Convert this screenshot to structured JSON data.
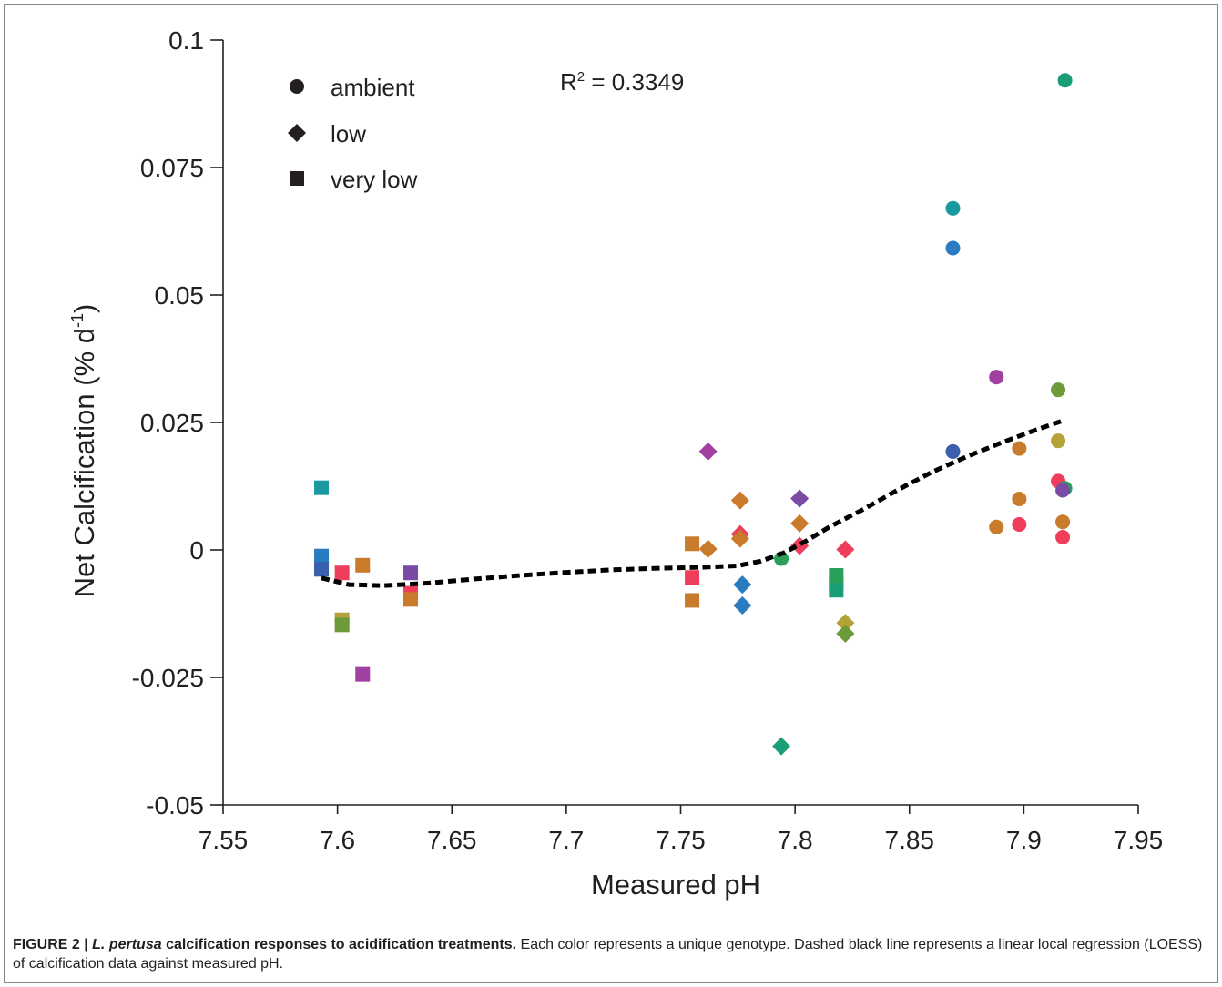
{
  "chart_data": {
    "type": "scatter",
    "xlabel": "Measured pH",
    "ylabel_main": "Net Calcification (% d",
    "ylabel_sup": "-1",
    "ylabel_close": ")",
    "xlim": [
      7.55,
      7.95
    ],
    "ylim": [
      -0.05,
      0.1
    ],
    "x_ticks": [
      "7.55",
      "7.6",
      "7.65",
      "7.7",
      "7.75",
      "7.8",
      "7.85",
      "7.9",
      "7.95"
    ],
    "x_tick_values": [
      7.55,
      7.6,
      7.65,
      7.7,
      7.75,
      7.8,
      7.85,
      7.9,
      7.95
    ],
    "y_ticks": [
      "-0.05",
      "-0.025",
      "0",
      "0.025",
      "0.05",
      "0.075",
      "0.1"
    ],
    "y_tick_values": [
      -0.05,
      -0.025,
      0,
      0.025,
      0.05,
      0.075,
      0.1
    ],
    "grid": false,
    "legend_position": "top-left",
    "legend": [
      {
        "label": "ambient",
        "shape": "circle"
      },
      {
        "label": "low",
        "shape": "diamond"
      },
      {
        "label": "very low",
        "shape": "square"
      }
    ],
    "annotation": {
      "main": "R",
      "sup": "2",
      "rest": " = 0.3349"
    },
    "treatments": [
      {
        "name": "ambient",
        "shape": "circle",
        "points": [
          {
            "x": 7.918,
            "y": 0.0921,
            "color": "#1a9e77"
          },
          {
            "x": 7.869,
            "y": 0.067,
            "color": "#1a9aa0"
          },
          {
            "x": 7.869,
            "y": 0.0592,
            "color": "#2a7bbf"
          },
          {
            "x": 7.888,
            "y": 0.0339,
            "color": "#a040a0"
          },
          {
            "x": 7.915,
            "y": 0.0314,
            "color": "#6e9a3a"
          },
          {
            "x": 7.915,
            "y": 0.0214,
            "color": "#b5a33a"
          },
          {
            "x": 7.898,
            "y": 0.0199,
            "color": "#c97a2a"
          },
          {
            "x": 7.869,
            "y": 0.0193,
            "color": "#3a5fad"
          },
          {
            "x": 7.915,
            "y": 0.0135,
            "color": "#ee3e5c"
          },
          {
            "x": 7.918,
            "y": 0.0121,
            "color": "#2aa05a"
          },
          {
            "x": 7.917,
            "y": 0.0117,
            "color": "#7a4aa5"
          },
          {
            "x": 7.898,
            "y": 0.01,
            "color": "#c97a2a"
          },
          {
            "x": 7.917,
            "y": 0.0055,
            "color": "#c97a2a"
          },
          {
            "x": 7.898,
            "y": 0.005,
            "color": "#ee3e5c"
          },
          {
            "x": 7.888,
            "y": 0.0045,
            "color": "#c97a2a"
          },
          {
            "x": 7.917,
            "y": 0.0025,
            "color": "#ee3e5c"
          },
          {
            "x": 7.794,
            "y": -0.0017,
            "color": "#2aa05a"
          }
        ]
      },
      {
        "name": "low",
        "shape": "diamond",
        "points": [
          {
            "x": 7.762,
            "y": 0.0193,
            "color": "#a040a0"
          },
          {
            "x": 7.802,
            "y": 0.0101,
            "color": "#7a4aa5"
          },
          {
            "x": 7.776,
            "y": 0.0097,
            "color": "#c97a2a"
          },
          {
            "x": 7.802,
            "y": 0.0052,
            "color": "#c97a2a"
          },
          {
            "x": 7.776,
            "y": 0.0031,
            "color": "#ee3e5c"
          },
          {
            "x": 7.776,
            "y": 0.0022,
            "color": "#c97a2a"
          },
          {
            "x": 7.802,
            "y": 0.0008,
            "color": "#ee3e5c"
          },
          {
            "x": 7.762,
            "y": 0.0002,
            "color": "#c97a2a"
          },
          {
            "x": 7.822,
            "y": 0.0001,
            "color": "#ee3e5c"
          },
          {
            "x": 7.777,
            "y": -0.0068,
            "color": "#2a7bbf"
          },
          {
            "x": 7.777,
            "y": -0.0109,
            "color": "#2a7bbf"
          },
          {
            "x": 7.822,
            "y": -0.0143,
            "color": "#b5a33a"
          },
          {
            "x": 7.822,
            "y": -0.0164,
            "color": "#6e9a3a"
          },
          {
            "x": 7.794,
            "y": -0.0385,
            "color": "#1a9e77"
          }
        ]
      },
      {
        "name": "very low",
        "shape": "square",
        "points": [
          {
            "x": 7.593,
            "y": 0.0122,
            "color": "#1a9aa0"
          },
          {
            "x": 7.593,
            "y": -0.0012,
            "color": "#2a7bbf"
          },
          {
            "x": 7.593,
            "y": -0.0022,
            "color": "#2a7bbf"
          },
          {
            "x": 7.593,
            "y": -0.0038,
            "color": "#3a5fad"
          },
          {
            "x": 7.602,
            "y": -0.0045,
            "color": "#ee3e5c"
          },
          {
            "x": 7.611,
            "y": -0.003,
            "color": "#c97a2a"
          },
          {
            "x": 7.632,
            "y": -0.0045,
            "color": "#7a4aa5"
          },
          {
            "x": 7.632,
            "y": -0.0085,
            "color": "#ee3e5c"
          },
          {
            "x": 7.632,
            "y": -0.0097,
            "color": "#c97a2a"
          },
          {
            "x": 7.602,
            "y": -0.0137,
            "color": "#b5a33a"
          },
          {
            "x": 7.602,
            "y": -0.0147,
            "color": "#6e9a3a"
          },
          {
            "x": 7.611,
            "y": -0.0244,
            "color": "#a040a0"
          },
          {
            "x": 7.755,
            "y": 0.0012,
            "color": "#c97a2a"
          },
          {
            "x": 7.755,
            "y": -0.0054,
            "color": "#ee3e5c"
          },
          {
            "x": 7.755,
            "y": -0.0099,
            "color": "#c97a2a"
          },
          {
            "x": 7.818,
            "y": -0.005,
            "color": "#2aa05a"
          },
          {
            "x": 7.818,
            "y": -0.0063,
            "color": "#2aa05a"
          },
          {
            "x": 7.818,
            "y": -0.0079,
            "color": "#1a9e77"
          }
        ]
      }
    ],
    "loess": {
      "style": "dashed",
      "color": "#000000",
      "points": [
        [
          7.593,
          -0.0055
        ],
        [
          7.605,
          -0.0068
        ],
        [
          7.62,
          -0.007
        ],
        [
          7.64,
          -0.0065
        ],
        [
          7.66,
          -0.0057
        ],
        [
          7.68,
          -0.005
        ],
        [
          7.7,
          -0.0044
        ],
        [
          7.72,
          -0.0039
        ],
        [
          7.74,
          -0.0036
        ],
        [
          7.76,
          -0.0034
        ],
        [
          7.775,
          -0.0031
        ],
        [
          7.785,
          -0.0022
        ],
        [
          7.795,
          -0.0006
        ],
        [
          7.805,
          0.0018
        ],
        [
          7.815,
          0.0045
        ],
        [
          7.83,
          0.008
        ],
        [
          7.845,
          0.0118
        ],
        [
          7.86,
          0.0153
        ],
        [
          7.875,
          0.0183
        ],
        [
          7.89,
          0.021
        ],
        [
          7.905,
          0.0235
        ],
        [
          7.918,
          0.0255
        ]
      ]
    }
  },
  "caption": {
    "label": "FIGURE 2 | ",
    "species": "L. pertusa",
    "title_rest": " calcification responses to acidification treatments.",
    "body": " Each color represents a unique genotype. Dashed black line represents a linear local regression (LOESS) of calcification data against measured pH."
  }
}
